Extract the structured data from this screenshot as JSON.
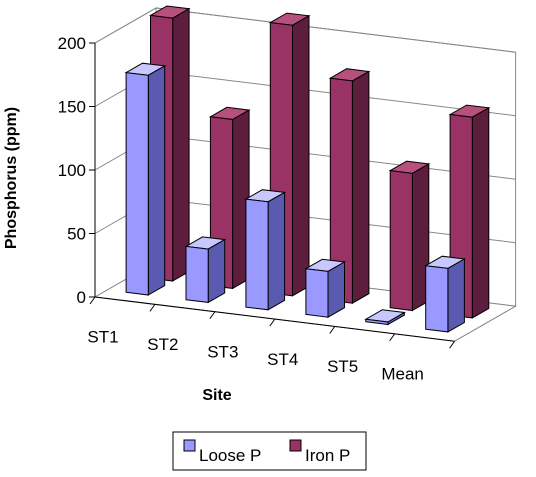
{
  "chart_data": {
    "type": "bar",
    "style": "3d-clustered-column",
    "categories": [
      "ST1",
      "ST2",
      "ST3",
      "ST4",
      "ST5",
      "Mean"
    ],
    "series": [
      {
        "name": "Loose P",
        "values": [
          173,
          42,
          85,
          36,
          2,
          50
        ],
        "color": "#9999ff",
        "side_color": "#5a5ab0",
        "top_color": "#c8c8ff"
      },
      {
        "name": "Iron P",
        "values": [
          207,
          133,
          213,
          175,
          108,
          158
        ],
        "color": "#993366",
        "side_color": "#5c1e3c",
        "top_color": "#b8507e"
      }
    ],
    "y_ticks": [
      "0",
      "50",
      "100",
      "150",
      "200"
    ],
    "ylim": [
      0,
      200
    ],
    "xlabel": "Site",
    "ylabel": "Phosphorus (ppm)",
    "grid": true,
    "legend_position": "bottom"
  }
}
